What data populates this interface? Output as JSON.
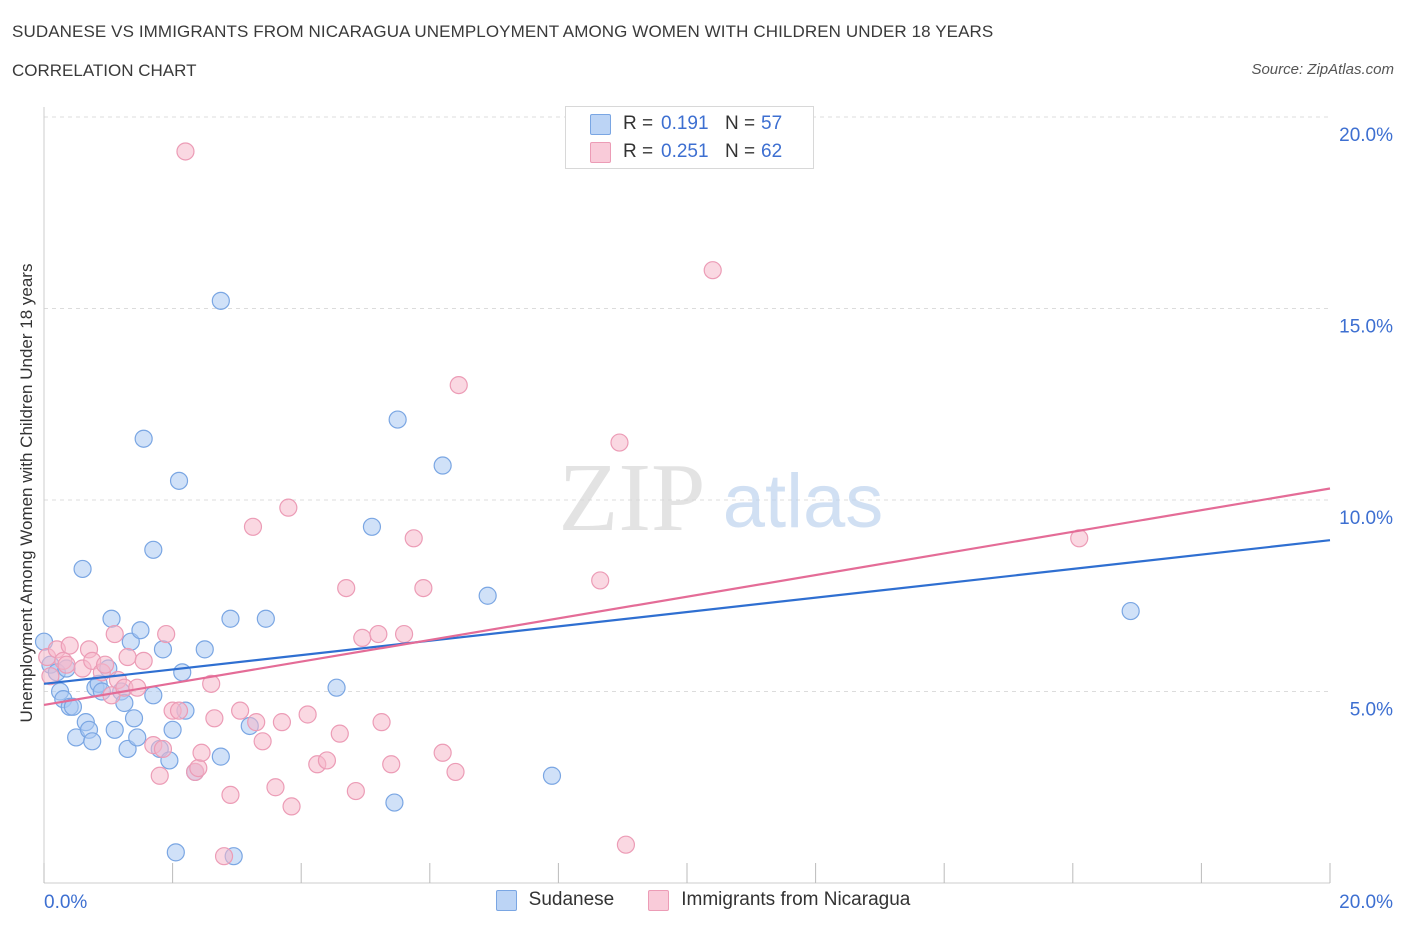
{
  "header": {
    "title": "SUDANESE VS IMMIGRANTS FROM NICARAGUA UNEMPLOYMENT AMONG WOMEN WITH CHILDREN UNDER 18 YEARS",
    "subtitle": "CORRELATION CHART",
    "source": "Source: ZipAtlas.com"
  },
  "watermark": {
    "zip": "ZIP",
    "atlas": "atlas"
  },
  "legend_top": {
    "rows": [
      {
        "r_label": "R =",
        "r_value": "0.191",
        "n_label": "N =",
        "n_value": "57"
      },
      {
        "r_label": "R =",
        "r_value": "0.251",
        "n_label": "N =",
        "n_value": "62"
      }
    ]
  },
  "legend_bottom": {
    "items": [
      "Sudanese",
      "Immigrants from Nicaragua"
    ]
  },
  "colors": {
    "sudanese_fill": "#a9c8f2",
    "sudanese_stroke": "#7aa6e3",
    "sudanese_line": "#2f6fd1",
    "nicaragua_fill": "#f6b8cb",
    "nicaragua_stroke": "#ec9cb6",
    "nicaragua_line": "#e46c97",
    "tick_label": "#3d6fd1",
    "grid": "#dcdcdc"
  },
  "chart_data": {
    "type": "scatter",
    "title": "SUDANESE VS IMMIGRANTS FROM NICARAGUA UNEMPLOYMENT AMONG WOMEN WITH CHILDREN UNDER 18 YEARS",
    "xlabel": "",
    "ylabel": "Unemployment Among Women with Children Under 18 years",
    "xlim": [
      0,
      20
    ],
    "ylim": [
      0,
      20
    ],
    "x_tick_labels": [
      "0.0%",
      "20.0%"
    ],
    "y_ticks": [
      5,
      10,
      15,
      20
    ],
    "y_tick_labels": [
      "5.0%",
      "10.0%",
      "15.0%",
      "20.0%"
    ],
    "grid": true,
    "legend_position": "top-center",
    "series": [
      {
        "name": "Sudanese",
        "R": 0.191,
        "N": 57,
        "trend": {
          "x": [
            0,
            20
          ],
          "y": [
            5.2,
            8.95
          ]
        },
        "points": [
          [
            0.0,
            6.3
          ],
          [
            0.1,
            5.7
          ],
          [
            0.2,
            5.5
          ],
          [
            0.25,
            5.0
          ],
          [
            0.3,
            4.8
          ],
          [
            0.35,
            5.6
          ],
          [
            0.4,
            4.6
          ],
          [
            0.45,
            4.6
          ],
          [
            0.5,
            3.8
          ],
          [
            0.6,
            8.2
          ],
          [
            0.65,
            4.2
          ],
          [
            0.7,
            4.0
          ],
          [
            0.75,
            3.7
          ],
          [
            0.8,
            5.1
          ],
          [
            0.85,
            5.2
          ],
          [
            0.9,
            5.0
          ],
          [
            1.0,
            5.6
          ],
          [
            1.05,
            6.9
          ],
          [
            1.1,
            4.0
          ],
          [
            1.2,
            5.0
          ],
          [
            1.25,
            4.7
          ],
          [
            1.3,
            3.5
          ],
          [
            1.35,
            6.3
          ],
          [
            1.4,
            4.3
          ],
          [
            1.45,
            3.8
          ],
          [
            1.5,
            6.6
          ],
          [
            1.55,
            11.6
          ],
          [
            1.7,
            8.7
          ],
          [
            1.7,
            4.9
          ],
          [
            1.8,
            3.5
          ],
          [
            1.85,
            6.1
          ],
          [
            1.95,
            3.2
          ],
          [
            2.0,
            4.0
          ],
          [
            2.05,
            0.8
          ],
          [
            2.1,
            10.5
          ],
          [
            2.15,
            5.5
          ],
          [
            2.2,
            4.5
          ],
          [
            2.35,
            2.9
          ],
          [
            2.5,
            6.1
          ],
          [
            2.75,
            15.2
          ],
          [
            2.75,
            3.3
          ],
          [
            2.9,
            6.9
          ],
          [
            2.95,
            0.7
          ],
          [
            3.2,
            4.1
          ],
          [
            3.45,
            6.9
          ],
          [
            4.55,
            5.1
          ],
          [
            5.1,
            9.3
          ],
          [
            5.45,
            2.1
          ],
          [
            5.5,
            12.1
          ],
          [
            6.2,
            10.9
          ],
          [
            6.9,
            7.5
          ],
          [
            7.9,
            2.8
          ],
          [
            16.9,
            7.1
          ]
        ]
      },
      {
        "name": "Immigrants from Nicaragua",
        "R": 0.251,
        "N": 62,
        "trend": {
          "x": [
            0,
            20
          ],
          "y": [
            4.65,
            10.3
          ]
        },
        "points": [
          [
            0.05,
            5.9
          ],
          [
            0.1,
            5.4
          ],
          [
            0.2,
            6.1
          ],
          [
            0.3,
            5.8
          ],
          [
            0.35,
            5.7
          ],
          [
            0.4,
            6.2
          ],
          [
            0.6,
            5.6
          ],
          [
            0.7,
            6.1
          ],
          [
            0.75,
            5.8
          ],
          [
            0.9,
            5.5
          ],
          [
            0.95,
            5.7
          ],
          [
            1.05,
            4.9
          ],
          [
            1.1,
            6.5
          ],
          [
            1.15,
            5.3
          ],
          [
            1.25,
            5.1
          ],
          [
            1.3,
            5.9
          ],
          [
            1.45,
            5.1
          ],
          [
            1.55,
            5.8
          ],
          [
            1.7,
            3.6
          ],
          [
            1.8,
            2.8
          ],
          [
            1.85,
            3.5
          ],
          [
            1.9,
            6.5
          ],
          [
            2.0,
            4.5
          ],
          [
            2.1,
            4.5
          ],
          [
            2.2,
            19.1
          ],
          [
            2.35,
            2.9
          ],
          [
            2.4,
            3.0
          ],
          [
            2.45,
            3.4
          ],
          [
            2.6,
            5.2
          ],
          [
            2.65,
            4.3
          ],
          [
            2.8,
            0.7
          ],
          [
            2.9,
            2.3
          ],
          [
            3.05,
            4.5
          ],
          [
            3.25,
            9.3
          ],
          [
            3.3,
            4.2
          ],
          [
            3.4,
            3.7
          ],
          [
            3.6,
            2.5
          ],
          [
            3.7,
            4.2
          ],
          [
            3.8,
            9.8
          ],
          [
            3.85,
            2.0
          ],
          [
            4.1,
            4.4
          ],
          [
            4.25,
            3.1
          ],
          [
            4.4,
            3.2
          ],
          [
            4.6,
            3.9
          ],
          [
            4.7,
            7.7
          ],
          [
            4.85,
            2.4
          ],
          [
            4.95,
            6.4
          ],
          [
            5.2,
            6.5
          ],
          [
            5.25,
            4.2
          ],
          [
            5.4,
            3.1
          ],
          [
            5.6,
            6.5
          ],
          [
            5.75,
            9.0
          ],
          [
            5.9,
            7.7
          ],
          [
            6.2,
            3.4
          ],
          [
            6.4,
            2.9
          ],
          [
            6.45,
            13.0
          ],
          [
            8.65,
            7.9
          ],
          [
            8.95,
            11.5
          ],
          [
            9.05,
            1.0
          ],
          [
            10.4,
            16.0
          ],
          [
            16.1,
            9.0
          ]
        ]
      }
    ]
  }
}
